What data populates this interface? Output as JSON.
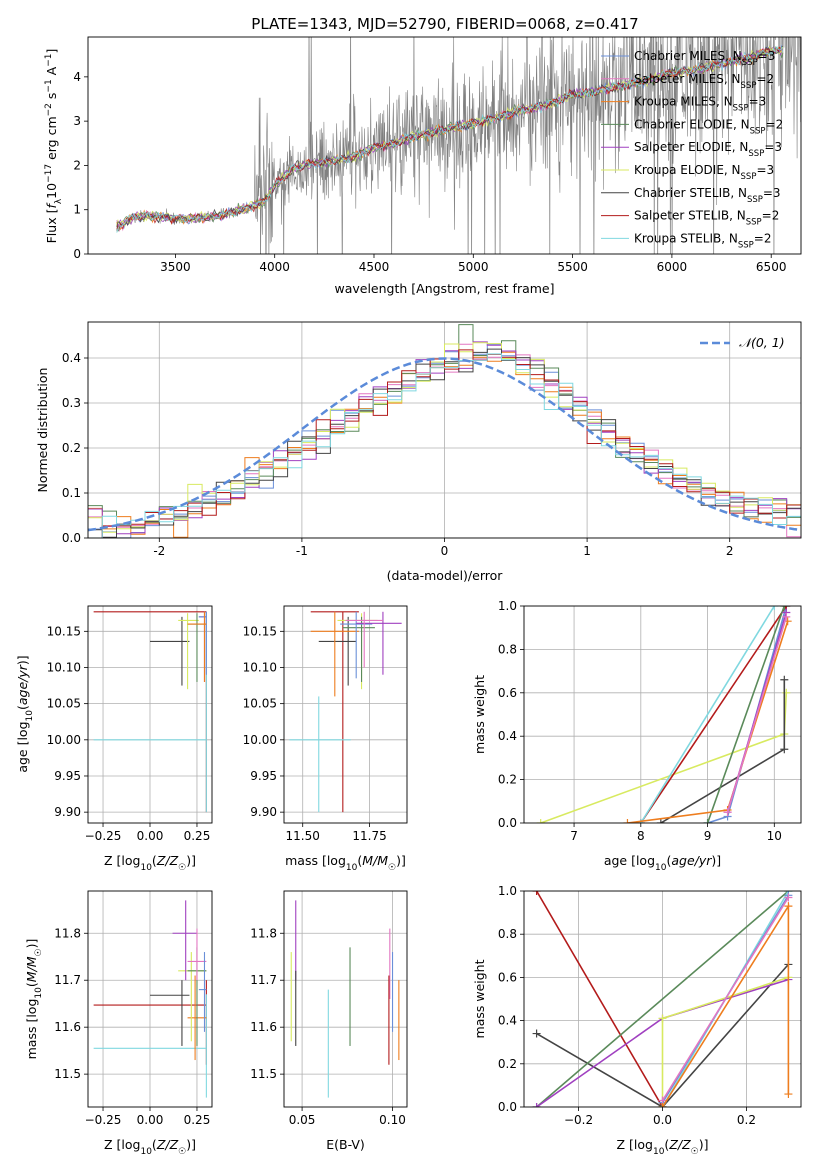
{
  "figure": {
    "title": "PLATE=1343, MJD=52790, FIBERID=0068, z=0.417"
  },
  "colors": {
    "Chabrier MILES": "#6a8fd8",
    "Salpeter MILES": "#e377c2",
    "Kroupa MILES": "#ee7d1e",
    "Chabrier ELODIE": "#5a8a5a",
    "Salpeter ELODIE": "#a040c0",
    "Kroupa ELODIE": "#d8ea60",
    "Chabrier STELIB": "#444444",
    "Salpeter STELIB": "#b31b1b",
    "Kroupa STELIB": "#80d8e0",
    "data": "#808080",
    "normal_curve": "#5b8bd9",
    "grid": "#b0b0b0"
  },
  "chart_data": [
    {
      "id": "spectrum",
      "type": "line",
      "title": "PLATE=1343, MJD=52790, FIBERID=0068, z=0.417",
      "xlabel": "wavelength [Angstrom, rest frame]",
      "ylabel": "Flux [f_λ 10^-17 erg cm^-2 s^-1 A^-1]",
      "xlim": [
        3060,
        6650
      ],
      "ylim": [
        0,
        4.9
      ],
      "xticks": [
        3500,
        4000,
        4500,
        5000,
        5500,
        6000,
        6500
      ],
      "yticks": [
        0,
        1,
        2,
        3,
        4
      ],
      "grid": false,
      "legend_position": "top-right",
      "legend": [
        {
          "label": "Chabrier MILES, N",
          "sub": "SSP",
          "tail": "=3"
        },
        {
          "label": "Salpeter MILES, N",
          "sub": "SSP",
          "tail": "=2"
        },
        {
          "label": "Kroupa MILES, N",
          "sub": "SSP",
          "tail": "=3"
        },
        {
          "label": "Chabrier ELODIE, N",
          "sub": "SSP",
          "tail": "=2"
        },
        {
          "label": "Salpeter ELODIE, N",
          "sub": "SSP",
          "tail": "=3"
        },
        {
          "label": "Kroupa ELODIE, N",
          "sub": "SSP",
          "tail": "=3"
        },
        {
          "label": "Chabrier STELIB, N",
          "sub": "SSP",
          "tail": "=3"
        },
        {
          "label": "Salpeter STELIB, N",
          "sub": "SSP",
          "tail": "=2"
        },
        {
          "label": "Kroupa STELIB, N",
          "sub": "SSP",
          "tail": "=2"
        }
      ],
      "model_continuum": {
        "x": [
          3200,
          3300,
          3400,
          3500,
          3600,
          3700,
          3800,
          3900,
          3950,
          4000,
          4100,
          4200,
          4300,
          4400,
          4500,
          4600,
          4700,
          4800,
          4900,
          5000,
          5100,
          5200,
          5300,
          5400,
          5500,
          5600,
          5700,
          5800,
          5900,
          6000,
          6100,
          6200,
          6300,
          6400,
          6500
        ],
        "y": [
          0.6,
          0.85,
          0.85,
          0.8,
          0.8,
          0.85,
          0.95,
          1.1,
          1.2,
          1.55,
          1.95,
          2.05,
          2.1,
          2.2,
          2.4,
          2.5,
          2.65,
          2.75,
          2.85,
          2.95,
          3.05,
          3.2,
          3.3,
          3.4,
          3.6,
          3.65,
          3.75,
          3.85,
          3.95,
          4.1,
          4.15,
          4.25,
          4.35,
          4.45,
          4.6
        ]
      }
    },
    {
      "id": "residuals",
      "type": "histogram",
      "xlabel": "(data-model)/error",
      "ylabel": "Normed distribution",
      "xlim": [
        -2.5,
        2.5
      ],
      "ylim": [
        0,
        0.48
      ],
      "xticks": [
        -2,
        -1,
        0,
        1,
        2
      ],
      "yticks": [
        0.0,
        0.1,
        0.2,
        0.3,
        0.4
      ],
      "grid": true,
      "legend_position": "top-right",
      "legend": [
        "𝒩(0, 1)"
      ],
      "bin_width": 0.1,
      "profile_x": [
        -2.5,
        -2.0,
        -1.5,
        -1.0,
        -0.5,
        0.0,
        0.4,
        0.8,
        1.2,
        1.6,
        2.0,
        2.5
      ],
      "profile_y": [
        0.01,
        0.04,
        0.1,
        0.2,
        0.3,
        0.39,
        0.42,
        0.33,
        0.22,
        0.14,
        0.08,
        0.05
      ]
    },
    {
      "id": "age_vs_Z",
      "type": "scatter",
      "xlabel": "Z [log10(Z/Z☉)]",
      "ylabel": "age  [log10(age/yr)]",
      "xlim": [
        -0.33,
        0.33
      ],
      "ylim": [
        9.885,
        10.185
      ],
      "xticks": [
        -0.25,
        0.0,
        0.25
      ],
      "xtick_labels": [
        "−0.25",
        "0.00",
        "0.25"
      ],
      "yticks": [
        9.9,
        9.95,
        10.0,
        10.05,
        10.1,
        10.15
      ],
      "yticks_labels": [
        "9.90",
        "9.95",
        "10.00",
        "10.05",
        "10.10",
        "10.15"
      ],
      "grid": true,
      "points": [
        {
          "model": "Salpeter STELIB",
          "x": 0.3,
          "y": 10.177,
          "xlo": -0.3,
          "xhi": 0.3,
          "ylo": 9.9,
          "yhi": 10.177
        },
        {
          "model": "Kroupa STELIB",
          "x": 0.3,
          "y": 10.0,
          "xlo": -0.3,
          "xhi": 0.3,
          "ylo": 9.9,
          "yhi": 10.177
        },
        {
          "model": "Chabrier STELIB",
          "x": 0.17,
          "y": 10.136,
          "xlo": 0.0,
          "xhi": 0.21,
          "ylo": 10.075,
          "yhi": 10.17
        },
        {
          "model": "Kroupa ELODIE",
          "x": 0.2,
          "y": 10.165,
          "xlo": 0.15,
          "xhi": 0.26,
          "ylo": 10.07,
          "yhi": 10.175
        },
        {
          "model": "Chabrier ELODIE",
          "x": 0.25,
          "y": 10.16,
          "xlo": 0.2,
          "xhi": 0.3,
          "ylo": 10.08,
          "yhi": 10.175
        },
        {
          "model": "Salpeter ELODIE",
          "x": 0.29,
          "y": 10.17,
          "xlo": 0.26,
          "xhi": 0.3,
          "ylo": 10.08,
          "yhi": 10.177
        },
        {
          "model": "Chabrier MILES",
          "x": 0.3,
          "y": 10.17,
          "xlo": 0.26,
          "xhi": 0.3,
          "ylo": 10.09,
          "yhi": 10.177
        },
        {
          "model": "Kroupa MILES",
          "x": 0.29,
          "y": 10.16,
          "xlo": 0.2,
          "xhi": 0.3,
          "ylo": 10.08,
          "yhi": 10.177
        }
      ]
    },
    {
      "id": "age_vs_mass",
      "type": "scatter",
      "xlabel": "mass [log10(M/M☉)]",
      "ylabel": "",
      "xlim": [
        11.43,
        11.89
      ],
      "ylim": [
        9.885,
        10.185
      ],
      "xticks": [
        11.5,
        11.75
      ],
      "xtick_labels": [
        "11.50",
        "11.75"
      ],
      "yticks": [
        9.9,
        9.95,
        10.0,
        10.05,
        10.1,
        10.15
      ],
      "yticks_labels": [
        "9.90",
        "9.95",
        "10.00",
        "10.05",
        "10.10",
        "10.15"
      ],
      "grid": true,
      "points": [
        {
          "model": "Salpeter STELIB",
          "x": 11.65,
          "y": 10.177,
          "xlo": 11.53,
          "xhi": 11.71,
          "ylo": 9.9,
          "yhi": 10.177
        },
        {
          "model": "Kroupa STELIB",
          "x": 11.56,
          "y": 10.0,
          "xlo": 11.45,
          "xhi": 11.68,
          "ylo": 9.9,
          "yhi": 10.06
        },
        {
          "model": "Chabrier STELIB",
          "x": 11.67,
          "y": 10.136,
          "xlo": 11.56,
          "xhi": 11.7,
          "ylo": 10.075,
          "yhi": 10.17
        },
        {
          "model": "Kroupa MILES",
          "x": 11.62,
          "y": 10.15,
          "xlo": 11.53,
          "xhi": 11.71,
          "ylo": 10.06,
          "yhi": 10.177
        },
        {
          "model": "Kroupa ELODIE",
          "x": 11.72,
          "y": 10.165,
          "xlo": 11.63,
          "xhi": 11.78,
          "ylo": 10.07,
          "yhi": 10.175
        },
        {
          "model": "Chabrier ELODIE",
          "x": 11.72,
          "y": 10.155,
          "xlo": 11.65,
          "xhi": 11.77,
          "ylo": 10.08,
          "yhi": 10.17
        },
        {
          "model": "Chabrier MILES",
          "x": 11.7,
          "y": 10.16,
          "xlo": 11.64,
          "xhi": 11.76,
          "ylo": 10.085,
          "yhi": 10.177
        },
        {
          "model": "Salpeter ELODIE",
          "x": 11.8,
          "y": 10.161,
          "xlo": 11.7,
          "xhi": 11.87,
          "ylo": 10.09,
          "yhi": 10.177
        },
        {
          "model": "Salpeter MILES",
          "x": 11.73,
          "y": 10.165,
          "xlo": 11.66,
          "xhi": 11.8,
          "ylo": 10.1,
          "yhi": 10.177
        }
      ]
    },
    {
      "id": "massweight_vs_age",
      "type": "line",
      "xlabel": "age  [log10(age/yr)]",
      "ylabel": "mass weight",
      "xlim": [
        6.25,
        10.4
      ],
      "ylim": [
        0,
        1
      ],
      "xticks": [
        7,
        8,
        9,
        10
      ],
      "yticks": [
        0.0,
        0.2,
        0.4,
        0.6,
        0.8,
        1.0
      ],
      "grid": true,
      "series": [
        {
          "model": "Kroupa ELODIE",
          "x": [
            6.5,
            10.15,
            10.18
          ],
          "y": [
            0.0,
            0.41,
            0.6
          ]
        },
        {
          "model": "Chabrier STELIB",
          "x": [
            8.3,
            10.15,
            10.15
          ],
          "y": [
            0.0,
            0.34,
            0.66
          ]
        },
        {
          "model": "Chabrier MILES",
          "x": [
            9.0,
            9.3,
            10.18
          ],
          "y": [
            0.0,
            0.03,
            1.0
          ]
        },
        {
          "model": "Salpeter STELIB",
          "x": [
            8.0,
            10.18
          ],
          "y": [
            0.0,
            1.0
          ]
        },
        {
          "model": "Kroupa STELIB",
          "x": [
            8.0,
            10.0
          ],
          "y": [
            0.0,
            1.0
          ]
        },
        {
          "model": "Chabrier ELODIE",
          "x": [
            9.0,
            10.15
          ],
          "y": [
            0.0,
            1.0
          ]
        },
        {
          "model": "Kroupa MILES",
          "x": [
            7.8,
            9.3,
            10.2
          ],
          "y": [
            0.0,
            0.06,
            0.93
          ]
        },
        {
          "model": "Salpeter ELODIE",
          "x": [
            9.3,
            10.18
          ],
          "y": [
            0.05,
            0.97
          ]
        },
        {
          "model": "Salpeter MILES",
          "x": [
            9.3,
            10.18
          ],
          "y": [
            0.05,
            0.95
          ]
        }
      ]
    },
    {
      "id": "mass_vs_Z",
      "type": "scatter",
      "xlabel": "Z [log10(Z/Z☉)]",
      "ylabel": "mass [log10(M/M☉)]",
      "xlim": [
        -0.33,
        0.33
      ],
      "ylim": [
        11.43,
        11.89
      ],
      "xticks": [
        -0.25,
        0.0,
        0.25
      ],
      "xtick_labels": [
        "−0.25",
        "0.00",
        "0.25"
      ],
      "yticks": [
        11.5,
        11.6,
        11.7,
        11.8
      ],
      "yticks_labels": [
        "11.5",
        "11.6",
        "11.7",
        "11.8"
      ],
      "grid": true,
      "points": [
        {
          "model": "Salpeter STELIB",
          "x": 0.3,
          "y": 11.647,
          "xlo": -0.3,
          "xhi": 0.3,
          "ylo": 11.52,
          "yhi": 11.7
        },
        {
          "model": "Kroupa STELIB",
          "x": 0.3,
          "y": 11.555,
          "xlo": -0.3,
          "xhi": 0.3,
          "ylo": 11.45,
          "yhi": 11.67
        },
        {
          "model": "Chabrier STELIB",
          "x": 0.17,
          "y": 11.668,
          "xlo": 0.0,
          "xhi": 0.21,
          "ylo": 11.56,
          "yhi": 11.7
        },
        {
          "model": "Kroupa MILES",
          "x": 0.24,
          "y": 11.62,
          "xlo": 0.2,
          "xhi": 0.3,
          "ylo": 11.53,
          "yhi": 11.71
        },
        {
          "model": "Kroupa ELODIE",
          "x": 0.22,
          "y": 11.72,
          "xlo": 0.15,
          "xhi": 0.3,
          "ylo": 11.57,
          "yhi": 11.76
        },
        {
          "model": "Chabrier ELODIE",
          "x": 0.25,
          "y": 11.72,
          "xlo": 0.2,
          "xhi": 0.3,
          "ylo": 11.56,
          "yhi": 11.77
        },
        {
          "model": "Salpeter ELODIE",
          "x": 0.19,
          "y": 11.8,
          "xlo": 0.12,
          "xhi": 0.25,
          "ylo": 11.7,
          "yhi": 11.87
        },
        {
          "model": "Salpeter MILES",
          "x": 0.25,
          "y": 11.74,
          "xlo": 0.2,
          "xhi": 0.3,
          "ylo": 11.7,
          "yhi": 11.81
        },
        {
          "model": "Chabrier MILES",
          "x": 0.29,
          "y": 11.68,
          "xlo": 0.26,
          "xhi": 0.3,
          "ylo": 11.59,
          "yhi": 11.76
        }
      ]
    },
    {
      "id": "mass_vs_ebv",
      "type": "scatter",
      "xlabel": "E(B-V)",
      "ylabel": "",
      "xlim": [
        0.04,
        0.108
      ],
      "ylim": [
        11.43,
        11.89
      ],
      "xticks": [
        0.05,
        0.1
      ],
      "xtick_labels": [
        "0.05",
        "0.10"
      ],
      "yticks": [
        11.5,
        11.6,
        11.7,
        11.8
      ],
      "yticks_labels": [
        "11.5",
        "11.6",
        "11.7",
        "11.8"
      ],
      "grid": true,
      "points": [
        {
          "model": "Kroupa ELODIE",
          "x": 0.044,
          "y": 11.65,
          "ylo": 11.57,
          "yhi": 11.76
        },
        {
          "model": "Salpeter ELODIE",
          "x": 0.0465,
          "y": 11.79,
          "ylo": 11.7,
          "yhi": 11.87
        },
        {
          "model": "Chabrier STELIB",
          "x": 0.0465,
          "y": 11.63,
          "ylo": 11.56,
          "yhi": 11.72
        },
        {
          "model": "Kroupa STELIB",
          "x": 0.0645,
          "y": 11.56,
          "ylo": 11.45,
          "yhi": 11.68
        },
        {
          "model": "Chabrier ELODIE",
          "x": 0.0765,
          "y": 11.67,
          "ylo": 11.56,
          "yhi": 11.77
        },
        {
          "model": "Salpeter MILES",
          "x": 0.0985,
          "y": 11.74,
          "ylo": 11.66,
          "yhi": 11.81
        },
        {
          "model": "Salpeter STELIB",
          "x": 0.098,
          "y": 11.647,
          "ylo": 11.52,
          "yhi": 11.71
        },
        {
          "model": "Chabrier MILES",
          "x": 0.1,
          "y": 11.68,
          "ylo": 11.59,
          "yhi": 11.76
        },
        {
          "model": "Kroupa MILES",
          "x": 0.1035,
          "y": 11.62,
          "ylo": 11.53,
          "yhi": 11.7
        }
      ]
    },
    {
      "id": "massweight_vs_Z",
      "type": "line",
      "xlabel": "Z [log10(Z/Z☉)]",
      "ylabel": "mass weight",
      "xlim": [
        -0.33,
        0.33
      ],
      "ylim": [
        0,
        1
      ],
      "xticks": [
        -0.2,
        0.0,
        0.2
      ],
      "xtick_labels": [
        "−0.2",
        "0.0",
        "0.2"
      ],
      "yticks": [
        0.0,
        0.2,
        0.4,
        0.6,
        0.8,
        1.0
      ],
      "grid": true,
      "series": [
        {
          "model": "Salpeter STELIB",
          "x": [
            -0.3,
            0.0
          ],
          "y": [
            1.0,
            0.0
          ]
        },
        {
          "model": "Chabrier STELIB",
          "x": [
            -0.3,
            0.0,
            0.3
          ],
          "y": [
            0.34,
            0.0,
            0.66
          ]
        },
        {
          "model": "Chabrier ELODIE",
          "x": [
            -0.3,
            0.3
          ],
          "y": [
            0.0,
            1.0
          ]
        },
        {
          "model": "Salpeter ELODIE",
          "x": [
            -0.3,
            0.0,
            0.3
          ],
          "y": [
            0.0,
            0.41,
            0.59
          ]
        },
        {
          "model": "Kroupa ELODIE",
          "x": [
            0.0,
            0.0,
            0.3
          ],
          "y": [
            0.0,
            0.41,
            0.6
          ]
        },
        {
          "model": "Kroupa STELIB",
          "x": [
            0.0,
            0.3
          ],
          "y": [
            0.0,
            1.0
          ]
        },
        {
          "model": "Chabrier MILES",
          "x": [
            0.0,
            0.3
          ],
          "y": [
            0.02,
            0.98
          ]
        },
        {
          "model": "Salpeter MILES",
          "x": [
            0.0,
            0.3
          ],
          "y": [
            0.03,
            0.97
          ]
        },
        {
          "model": "Kroupa MILES",
          "x": [
            0.0,
            0.3,
            0.3
          ],
          "y": [
            0.0,
            0.93,
            0.06
          ]
        }
      ]
    }
  ]
}
